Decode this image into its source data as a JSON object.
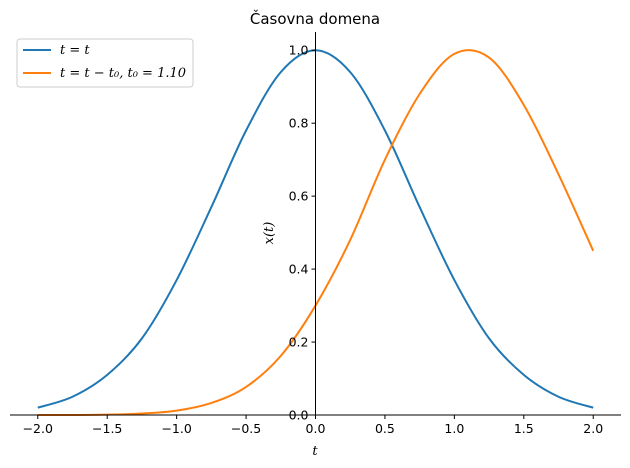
{
  "chart_data": {
    "type": "line",
    "title": "Časovna domena",
    "xlabel": "t",
    "ylabel": "x(t)",
    "xlim": [
      -2.2,
      2.2
    ],
    "ylim": [
      0.0,
      1.05
    ],
    "xticks": [
      -2.0,
      -1.5,
      -1.0,
      -0.5,
      0.0,
      0.5,
      1.0,
      1.5,
      2.0
    ],
    "xtick_labels": [
      "−2.0",
      "−1.5",
      "−1.0",
      "−0.5",
      "0.0",
      "0.5",
      "1.0",
      "1.5",
      "2.0"
    ],
    "yticks": [
      0.0,
      0.2,
      0.4,
      0.6,
      0.8,
      1.0
    ],
    "ytick_labels": [
      "0.0",
      "0.2",
      "0.4",
      "0.6",
      "0.8",
      "1.0"
    ],
    "grid": false,
    "legend_position": "top-left",
    "series": [
      {
        "name": "t = t",
        "color": "#1f77b4",
        "x": [
          -2.0,
          -1.75,
          -1.5,
          -1.25,
          -1.0,
          -0.75,
          -0.5,
          -0.25,
          0.0,
          0.25,
          0.5,
          0.75,
          1.0,
          1.25,
          1.5,
          1.75,
          2.0
        ],
        "y": [
          0.02,
          0.05,
          0.11,
          0.21,
          0.37,
          0.57,
          0.78,
          0.94,
          1.0,
          0.94,
          0.78,
          0.57,
          0.37,
          0.21,
          0.11,
          0.05,
          0.02
        ]
      },
      {
        "name": "t = t − t0, t0 = 1.10",
        "color": "#ff7f0e",
        "x": [
          -2.0,
          -1.75,
          -1.5,
          -1.25,
          -1.0,
          -0.75,
          -0.5,
          -0.25,
          0.0,
          0.25,
          0.5,
          0.75,
          1.0,
          1.25,
          1.5,
          1.75,
          2.0
        ],
        "y": [
          0.0,
          0.0,
          0.001,
          0.004,
          0.012,
          0.033,
          0.077,
          0.162,
          0.3,
          0.48,
          0.7,
          0.88,
          0.99,
          0.98,
          0.85,
          0.66,
          0.45
        ]
      }
    ]
  },
  "legend": {
    "entries": [
      {
        "lhs": "t",
        "eq": " = ",
        "rhs": "t",
        "extra": ""
      },
      {
        "lhs": "t",
        "eq": " = ",
        "rhs": "t − t₀,",
        "extra": " t₀ = 1.10"
      }
    ]
  }
}
